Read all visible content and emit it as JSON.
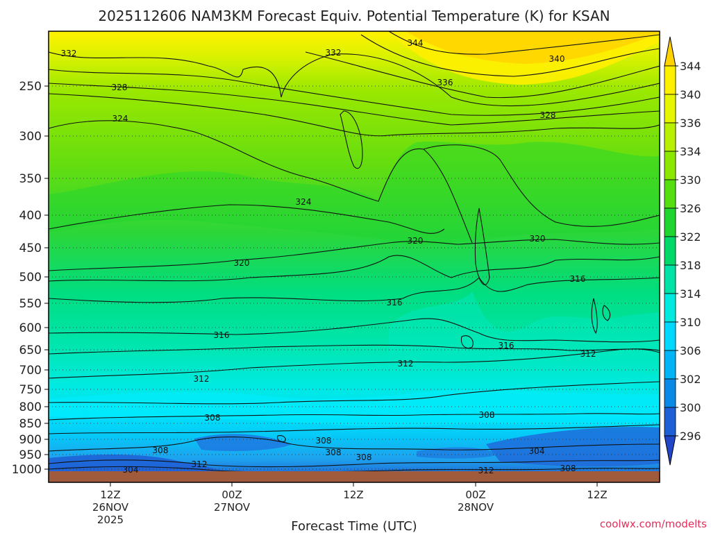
{
  "chart_data": {
    "type": "heatmap",
    "title": "2025112606 NAM3KM Forecast Equiv. Potential Temperature (K) for KSAN",
    "xlabel": "Forecast Time (UTC)",
    "ylabel": "",
    "credit": "coolwx.com/modelts",
    "y_ticks": [
      "250",
      "300",
      "350",
      "400",
      "450",
      "500",
      "550",
      "600",
      "650",
      "700",
      "750",
      "800",
      "850",
      "900",
      "950",
      "1000"
    ],
    "x_ticks": [
      {
        "line1": "12Z",
        "line2": "26NOV",
        "line3": "2025"
      },
      {
        "line1": "00Z",
        "line2": "27NOV",
        "line3": ""
      },
      {
        "line1": "12Z",
        "line2": "",
        "line3": ""
      },
      {
        "line1": "00Z",
        "line2": "28NOV",
        "line3": ""
      },
      {
        "line1": "12Z",
        "line2": "",
        "line3": ""
      }
    ],
    "colorbar": {
      "labels": [
        "344",
        "340",
        "336",
        "334",
        "330",
        "326",
        "322",
        "318",
        "314",
        "310",
        "306",
        "302",
        "300",
        "296"
      ],
      "colors": [
        "#ffd200",
        "#fff000",
        "#e6f500",
        "#b9ef00",
        "#8be600",
        "#55de10",
        "#1fd530",
        "#00d86a",
        "#00e3a6",
        "#00eae0",
        "#00d8ff",
        "#00b4f5",
        "#0a8ae6",
        "#1f5fd6",
        "#2146c8"
      ]
    },
    "contour_labels": [
      "344",
      "340",
      "336",
      "332",
      "332",
      "328",
      "328",
      "324",
      "324",
      "320",
      "320",
      "320",
      "316",
      "316",
      "316",
      "316",
      "312",
      "312",
      "312",
      "308",
      "308",
      "308",
      "308",
      "308",
      "308",
      "308",
      "304",
      "304",
      "312",
      "312"
    ]
  }
}
